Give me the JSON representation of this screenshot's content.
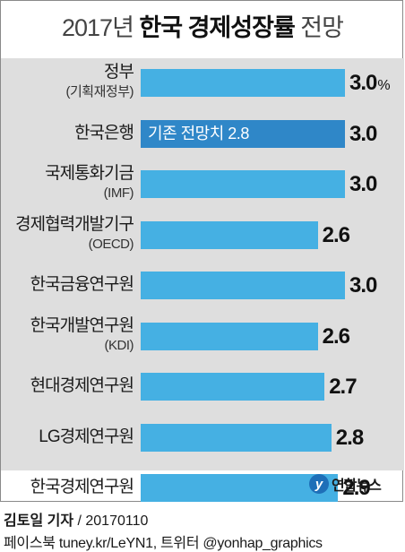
{
  "title": {
    "light": "2017년 ",
    "bold": "한국 경제성장률",
    "light2": " 전망"
  },
  "chart_data": {
    "type": "bar",
    "orientation": "horizontal",
    "xlim": [
      0,
      3.0
    ],
    "value_unit": "%",
    "categories": [
      {
        "name": "정부",
        "sub": "(기획재정부)",
        "value": 3.0,
        "label": "3.0",
        "unit": "%",
        "highlight": false,
        "note": ""
      },
      {
        "name": "한국은행",
        "sub": "",
        "value": 3.0,
        "label": "3.0",
        "unit": "",
        "highlight": true,
        "note": "기존 전망치 2.8"
      },
      {
        "name": "국제통화기금",
        "sub": "(IMF)",
        "value": 3.0,
        "label": "3.0",
        "unit": "",
        "highlight": false,
        "note": ""
      },
      {
        "name": "경제협력개발기구",
        "sub": "(OECD)",
        "value": 2.6,
        "label": "2.6",
        "unit": "",
        "highlight": false,
        "note": ""
      },
      {
        "name": "한국금융연구원",
        "sub": "",
        "value": 3.0,
        "label": "3.0",
        "unit": "",
        "highlight": false,
        "note": ""
      },
      {
        "name": "한국개발연구원",
        "sub": "(KDI)",
        "value": 2.6,
        "label": "2.6",
        "unit": "",
        "highlight": false,
        "note": ""
      },
      {
        "name": "현대경제연구원",
        "sub": "",
        "value": 2.7,
        "label": "2.7",
        "unit": "",
        "highlight": false,
        "note": ""
      },
      {
        "name": "LG경제연구원",
        "sub": "",
        "value": 2.8,
        "label": "2.8",
        "unit": "",
        "highlight": false,
        "note": ""
      },
      {
        "name": "한국경제연구원",
        "sub": "",
        "value": 2.9,
        "label": "2.9",
        "unit": "",
        "highlight": false,
        "note": ""
      }
    ]
  },
  "colors": {
    "bar": "#45b0e3",
    "bar_highlight": "#2f87c8",
    "plot_bg": "#dedede"
  },
  "logo": {
    "mark": "y",
    "text": "연합뉴스"
  },
  "credit": {
    "reporter": "김토일 기자",
    "date": " / 20170110"
  },
  "social": "페이스북 tuney.kr/LeYN1, 트위터 @yonhap_graphics"
}
